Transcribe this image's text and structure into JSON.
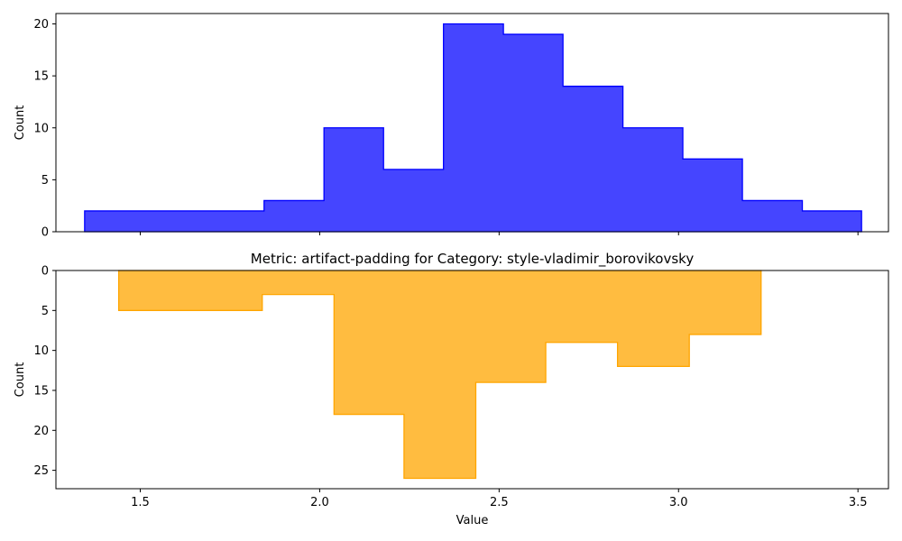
{
  "chart_data": [
    {
      "type": "histogram",
      "title": "",
      "xlabel": "",
      "ylabel": "Count",
      "xlim": [
        1.265,
        3.585
      ],
      "ylim": [
        0,
        21
      ],
      "y_inverted": false,
      "xticks": [
        1.5,
        2.0,
        2.5,
        3.0,
        3.5
      ],
      "xtick_labels_visible": false,
      "yticks": [
        0,
        5,
        10,
        15,
        20
      ],
      "grid": false,
      "series": [
        {
          "color": "#0000ff",
          "fill_alpha": 0.73,
          "bin_edges": [
            1.345,
            1.845,
            2.012,
            2.178,
            2.345,
            2.512,
            2.678,
            2.845,
            3.012,
            3.178,
            3.345,
            3.51
          ],
          "counts": [
            2,
            3,
            10,
            6,
            20,
            19,
            14,
            10,
            7,
            3,
            2
          ]
        }
      ]
    },
    {
      "type": "histogram",
      "title": "Metric: artifact-padding for Category: style-vladimir_borovikovsky",
      "xlabel": "Value",
      "ylabel": "Count",
      "xlim": [
        1.265,
        3.585
      ],
      "ylim": [
        0,
        27.3
      ],
      "y_inverted": true,
      "xticks": [
        1.5,
        2.0,
        2.5,
        3.0,
        3.5
      ],
      "xtick_labels_visible": true,
      "yticks": [
        0,
        5,
        10,
        15,
        20,
        25
      ],
      "grid": false,
      "series": [
        {
          "color": "#ffa500",
          "fill_alpha": 0.75,
          "bin_edges": [
            1.44,
            1.84,
            2.04,
            2.235,
            2.435,
            2.63,
            2.83,
            3.03,
            3.23
          ],
          "counts": [
            5,
            3,
            18,
            26,
            14,
            9,
            12,
            8
          ]
        }
      ]
    }
  ]
}
